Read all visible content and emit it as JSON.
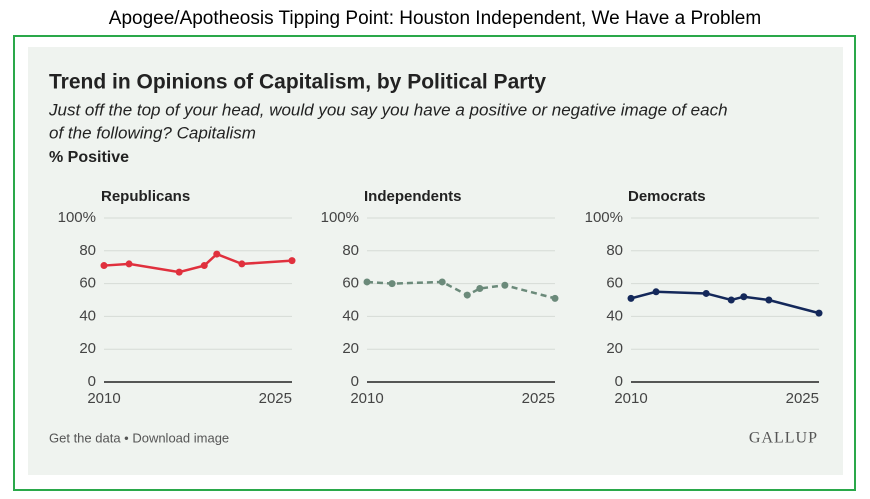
{
  "header": {
    "page_title": "Apogee/Apotheosis Tipping Point: Houston Independent, We Have a Problem",
    "title": "Trend in Opinions of Capitalism, by Political Party",
    "subtitle": [
      "Just off the top of your head, would you say you have a positive or negative image of each",
      "of the following? Capitalism"
    ],
    "unit": "% Positive"
  },
  "chart_data": [
    {
      "type": "line",
      "title": "Republicans",
      "x": [
        2010,
        2012,
        2016,
        2018,
        2019,
        2021,
        2025
      ],
      "values": [
        71,
        72,
        67,
        71,
        78,
        72,
        74
      ],
      "color": "#e0303d",
      "dashed": false,
      "xlim": [
        2010,
        2025
      ],
      "xticks": [
        2010,
        2025
      ],
      "ylim": [
        0,
        100
      ],
      "yticks": [
        0,
        20,
        40,
        60,
        80,
        {
          "value": 100,
          "label": "100%"
        }
      ],
      "grid": true
    },
    {
      "type": "line",
      "title": "Independents",
      "x": [
        2010,
        2012,
        2016,
        2018,
        2019,
        2021,
        2025
      ],
      "values": [
        61,
        60,
        61,
        53,
        57,
        59,
        51
      ],
      "color": "#6b8a7a",
      "dashed": true,
      "xlim": [
        2010,
        2025
      ],
      "xticks": [
        2010,
        2025
      ],
      "ylim": [
        0,
        100
      ],
      "yticks": [
        0,
        20,
        40,
        60,
        80,
        {
          "value": 100,
          "label": "100%"
        }
      ],
      "grid": true
    },
    {
      "type": "line",
      "title": "Democrats",
      "x": [
        2010,
        2012,
        2016,
        2018,
        2019,
        2021,
        2025
      ],
      "values": [
        51,
        55,
        54,
        50,
        52,
        50,
        42
      ],
      "color": "#14285a",
      "dashed": false,
      "xlim": [
        2010,
        2025
      ],
      "xticks": [
        2010,
        2025
      ],
      "ylim": [
        0,
        100
      ],
      "yticks": [
        0,
        20,
        40,
        60,
        80,
        {
          "value": 100,
          "label": "100%"
        }
      ],
      "grid": true
    }
  ],
  "footer": {
    "links": "Get the data • Download image",
    "brand": "GALLUP"
  }
}
